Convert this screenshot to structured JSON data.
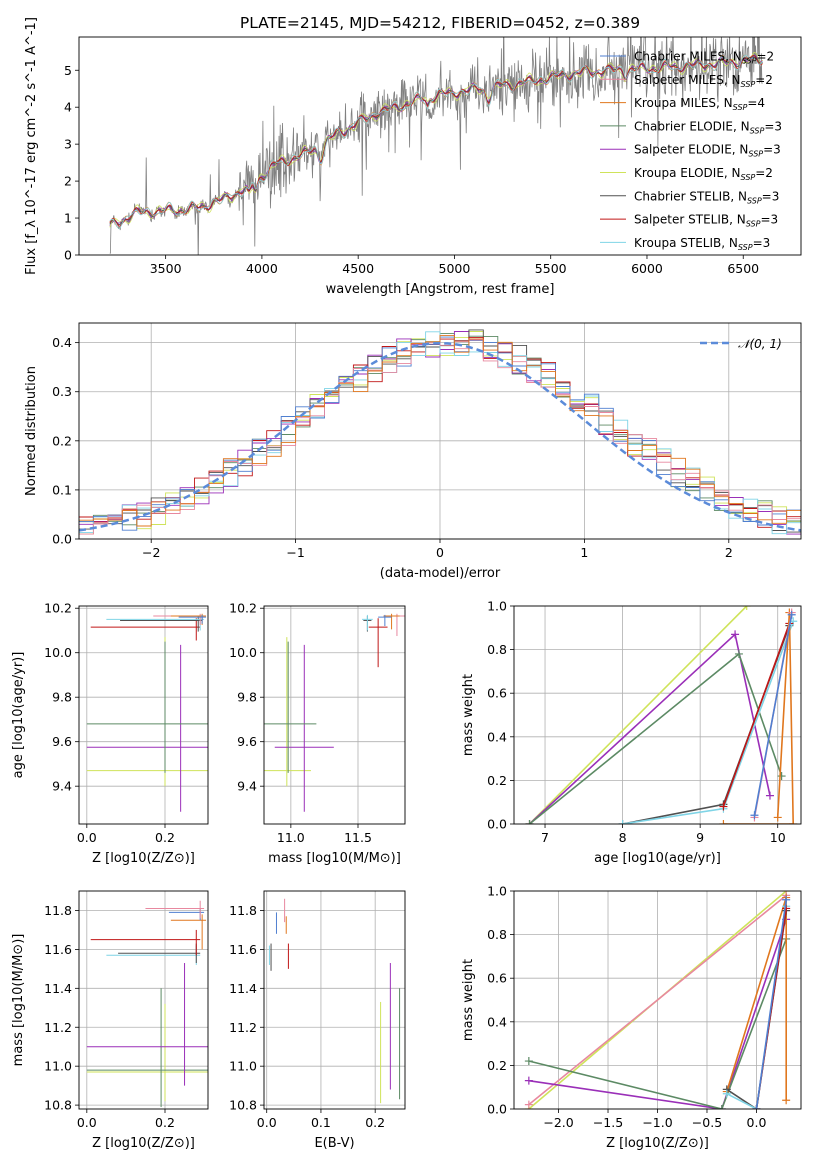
{
  "figure_title": "PLATE=2145, MJD=54212, FIBERID=0452, z=0.389",
  "colors": {
    "chabrier_miles": "#4f7fd0",
    "salpeter_miles": "#e8889f",
    "kroupa_miles": "#e0771e",
    "chabrier_elodie": "#5c8a64",
    "salpeter_elodie": "#9a2fb8",
    "kroupa_elodie": "#cfe35a",
    "chabrier_stelib": "#505050",
    "salpeter_stelib": "#c01616",
    "kroupa_stelib": "#7fd4e6",
    "data": "#808080",
    "normal": "#5b8bd9"
  },
  "chart_data": [
    {
      "id": "spectrum",
      "type": "line",
      "title": "PLATE=2145, MJD=54212, FIBERID=0452, z=0.389",
      "xlabel": "wavelength [Angstrom, rest frame]",
      "ylabel": "Flux [f_λ 10^-17 erg cm^-2 s^-1 A^-1]",
      "xlim": [
        3050,
        6800
      ],
      "ylim": [
        0,
        5.9
      ],
      "xticks": [
        "3500",
        "4000",
        "4500",
        "5000",
        "5500",
        "6000",
        "6500"
      ],
      "yticks": [
        "0",
        "1",
        "2",
        "3",
        "4",
        "5"
      ],
      "grid": false,
      "legend_position": "top-right",
      "legend": [
        {
          "label": "Chabrier MILES, N_SSP=2",
          "key": "chabrier_miles"
        },
        {
          "label": "Salpeter MILES, N_SSP=2",
          "key": "salpeter_miles"
        },
        {
          "label": "Kroupa MILES, N_SSP=4",
          "key": "kroupa_miles"
        },
        {
          "label": "Chabrier ELODIE, N_SSP=3",
          "key": "chabrier_elodie"
        },
        {
          "label": "Salpeter ELODIE, N_SSP=3",
          "key": "salpeter_elodie"
        },
        {
          "label": "Kroupa ELODIE, N_SSP=2",
          "key": "kroupa_elodie"
        },
        {
          "label": "Chabrier STELIB, N_SSP=3",
          "key": "chabrier_stelib"
        },
        {
          "label": "Salpeter STELIB, N_SSP=3",
          "key": "salpeter_stelib"
        },
        {
          "label": "Kroupa STELIB, N_SSP=3",
          "key": "kroupa_stelib"
        }
      ],
      "continuum": [
        [
          3200,
          0.75
        ],
        [
          3350,
          1.15
        ],
        [
          3500,
          1.2
        ],
        [
          3650,
          1.25
        ],
        [
          3800,
          1.5
        ],
        [
          3950,
          1.9
        ],
        [
          4050,
          2.4
        ],
        [
          4250,
          2.8
        ],
        [
          4400,
          3.3
        ],
        [
          4600,
          3.85
        ],
        [
          4850,
          4.25
        ],
        [
          5000,
          4.4
        ],
        [
          5200,
          4.55
        ],
        [
          5400,
          4.7
        ],
        [
          5600,
          4.9
        ],
        [
          5800,
          5.0
        ],
        [
          6000,
          5.05
        ],
        [
          6300,
          5.15
        ],
        [
          6600,
          5.3
        ]
      ]
    },
    {
      "id": "residuals",
      "type": "line",
      "xlabel": "(data-model)/error",
      "ylabel": "Normed distribution",
      "xlim": [
        -2.5,
        2.5
      ],
      "ylim": [
        0,
        0.44
      ],
      "xticks": [
        "−2",
        "−1",
        "0",
        "1",
        "2"
      ],
      "yticks": [
        "0.0",
        "0.1",
        "0.2",
        "0.3",
        "0.4"
      ],
      "grid": true,
      "legend_position": "top-right",
      "legend": [
        {
          "label": "𝒩(0, 1)",
          "key": "normal"
        }
      ],
      "bin_width": 0.1
    },
    {
      "id": "age_vs_Z",
      "type": "scatter",
      "xlabel": "Z [log10(Z/Z⊙)]",
      "ylabel": "age [log10(age/yr)]",
      "xlim": [
        -0.02,
        0.31
      ],
      "ylim": [
        9.23,
        10.21
      ],
      "xticks": [
        "0.0",
        "0.2"
      ],
      "yticks": [
        "9.4",
        "9.6",
        "9.8",
        "10.0",
        "10.2"
      ],
      "grid": true,
      "points": [
        {
          "model": "kroupa_elodie",
          "x": 0.2,
          "xerr": 0.2,
          "y": 9.47,
          "yerr": [
            0.07,
            0.6
          ]
        },
        {
          "model": "salpeter_elodie",
          "x": 0.24,
          "xerr": 0.24,
          "y": 9.575,
          "yerr": [
            0.29,
            0.46
          ]
        },
        {
          "model": "chabrier_elodie",
          "x": 0.2,
          "xerr": 0.2,
          "y": 9.68,
          "yerr": [
            0.22,
            0.37
          ]
        },
        {
          "model": "salpeter_stelib",
          "x": 0.28,
          "xerr": [
            0.27,
            0.01
          ],
          "y": 10.115,
          "yerr": [
            0.06,
            0.04
          ]
        },
        {
          "model": "chabrier_stelib",
          "x": 0.285,
          "xerr": [
            0.2,
            0.01
          ],
          "y": 10.145,
          "yerr": [
            0.05,
            0.02
          ]
        },
        {
          "model": "kroupa_stelib",
          "x": 0.29,
          "xerr": [
            0.24,
            0.01
          ],
          "y": 10.15,
          "yerr": [
            0.05,
            0.02
          ]
        },
        {
          "model": "salpeter_miles",
          "x": 0.29,
          "xerr": [
            0.12,
            0.01
          ],
          "y": 10.165,
          "yerr": [
            0.04,
            0.01
          ]
        },
        {
          "model": "kroupa_miles",
          "x": 0.295,
          "xerr": [
            0.08,
            0.01
          ],
          "y": 10.165,
          "yerr": [
            0.04,
            0.01
          ]
        },
        {
          "model": "chabrier_miles",
          "x": 0.295,
          "xerr": [
            0.06,
            0.01
          ],
          "y": 10.16,
          "yerr": [
            0.03,
            0.01
          ]
        }
      ]
    },
    {
      "id": "age_vs_mass",
      "type": "scatter",
      "xlabel": "mass [log10(M/M⊙)]",
      "ylabel": "",
      "xlim": [
        10.8,
        11.85
      ],
      "ylim": [
        9.23,
        10.21
      ],
      "xticks": [
        "11.0",
        "11.5"
      ],
      "yticks": [
        "9.4",
        "9.6",
        "9.8",
        "10.0",
        "10.2"
      ],
      "grid": true,
      "points": [
        {
          "model": "kroupa_elodie",
          "x": 10.97,
          "xerr": 0.18,
          "y": 9.47,
          "yerr": [
            0.07,
            0.6
          ]
        },
        {
          "model": "salpeter_elodie",
          "x": 11.1,
          "xerr": 0.22,
          "y": 9.575,
          "yerr": [
            0.29,
            0.46
          ]
        },
        {
          "model": "chabrier_elodie",
          "x": 10.98,
          "xerr": 0.21,
          "y": 9.68,
          "yerr": [
            0.22,
            0.37
          ]
        },
        {
          "model": "salpeter_stelib",
          "x": 11.65,
          "xerr": 0.07,
          "y": 10.115,
          "yerr": [
            0.18,
            0.04
          ]
        },
        {
          "model": "chabrier_stelib",
          "x": 11.57,
          "xerr": 0.03,
          "y": 10.145,
          "yerr": [
            0.05,
            0.02
          ]
        },
        {
          "model": "kroupa_stelib",
          "x": 11.57,
          "xerr": 0.04,
          "y": 10.15,
          "yerr": [
            0.05,
            0.02
          ]
        },
        {
          "model": "salpeter_miles",
          "x": 11.79,
          "xerr": 0.06,
          "y": 10.165,
          "yerr": [
            0.09,
            0.01
          ]
        },
        {
          "model": "kroupa_miles",
          "x": 11.75,
          "xerr": 0.06,
          "y": 10.165,
          "yerr": [
            0.06,
            0.01
          ]
        },
        {
          "model": "chabrier_miles",
          "x": 11.7,
          "xerr": 0.05,
          "y": 10.16,
          "yerr": [
            0.04,
            0.01
          ]
        }
      ]
    },
    {
      "id": "weight_vs_age",
      "type": "line",
      "xlabel": "age [log10(age/yr)]",
      "ylabel": "mass weight",
      "xlim": [
        6.6,
        10.3
      ],
      "ylim": [
        0,
        1.0
      ],
      "xticks": [
        "7",
        "8",
        "9",
        "10"
      ],
      "yticks": [
        "0.0",
        "0.2",
        "0.4",
        "0.6",
        "0.8",
        "1.0"
      ],
      "grid": true,
      "series": [
        {
          "model": "kroupa_elodie",
          "x": [
            6.8,
            9.6
          ],
          "y": [
            0.0,
            1.0
          ]
        },
        {
          "model": "salpeter_elodie",
          "x": [
            6.8,
            9.45,
            9.9
          ],
          "y": [
            0.0,
            0.87,
            0.13
          ]
        },
        {
          "model": "chabrier_elodie",
          "x": [
            6.8,
            9.5,
            10.05
          ],
          "y": [
            0.0,
            0.78,
            0.22
          ]
        },
        {
          "model": "chabrier_stelib",
          "x": [
            8.0,
            9.3,
            10.15
          ],
          "y": [
            0.0,
            0.09,
            0.91
          ]
        },
        {
          "model": "kroupa_stelib",
          "x": [
            8.0,
            9.3,
            10.2
          ],
          "y": [
            0.0,
            0.07,
            0.93
          ]
        },
        {
          "model": "salpeter_stelib",
          "x": [
            9.3,
            10.15
          ],
          "y": [
            0.08,
            0.92
          ]
        },
        {
          "model": "kroupa_miles",
          "x": [
            10.0,
            10.15,
            10.2,
            9.3
          ],
          "y": [
            0.03,
            0.97,
            0.0,
            0.0
          ]
        },
        {
          "model": "salpeter_miles",
          "x": [
            9.7,
            10.18
          ],
          "y": [
            0.03,
            0.97
          ]
        },
        {
          "model": "chabrier_miles",
          "x": [
            9.7,
            10.18
          ],
          "y": [
            0.04,
            0.96
          ]
        }
      ]
    },
    {
      "id": "mass_vs_Z",
      "type": "scatter",
      "xlabel": "Z [log10(Z/Z⊙)]",
      "ylabel": "mass [log10(M/M⊙)]",
      "xlim": [
        -0.02,
        0.31
      ],
      "ylim": [
        10.78,
        11.9
      ],
      "xticks": [
        "0.0",
        "0.2"
      ],
      "yticks": [
        "10.8",
        "11.0",
        "11.2",
        "11.4",
        "11.6",
        "11.8"
      ],
      "grid": true,
      "points": [
        {
          "model": "kroupa_elodie",
          "x": 0.2,
          "xerr": 0.2,
          "y": 10.97,
          "yerr": [
            0.15,
            0.35
          ]
        },
        {
          "model": "chabrier_elodie",
          "x": 0.19,
          "xerr": 0.19,
          "y": 10.98,
          "yerr": [
            0.19,
            0.42
          ]
        },
        {
          "model": "salpeter_elodie",
          "x": 0.25,
          "xerr": 0.25,
          "y": 11.1,
          "yerr": [
            0.2,
            0.43
          ]
        },
        {
          "model": "kroupa_stelib",
          "x": 0.28,
          "xerr": [
            0.23,
            0.01
          ],
          "y": 11.57,
          "yerr": [
            0.05,
            0.05
          ]
        },
        {
          "model": "chabrier_stelib",
          "x": 0.28,
          "xerr": [
            0.2,
            0.01
          ],
          "y": 11.58,
          "yerr": [
            0.05,
            0.05
          ]
        },
        {
          "model": "salpeter_stelib",
          "x": 0.28,
          "xerr": [
            0.27,
            0.01
          ],
          "y": 11.65,
          "yerr": [
            0.08,
            0.05
          ]
        },
        {
          "model": "kroupa_miles",
          "x": 0.295,
          "xerr": [
            0.08,
            0.01
          ],
          "y": 11.75,
          "yerr": [
            0.15,
            0.03
          ]
        },
        {
          "model": "chabrier_miles",
          "x": 0.29,
          "xerr": [
            0.08,
            0.01
          ],
          "y": 11.79,
          "yerr": [
            0.04,
            0.02
          ]
        },
        {
          "model": "salpeter_miles",
          "x": 0.29,
          "xerr": [
            0.14,
            0.01
          ],
          "y": 11.81,
          "yerr": [
            0.05,
            0.04
          ]
        }
      ]
    },
    {
      "id": "mass_vs_ebv",
      "type": "scatter",
      "xlabel": "E(B-V)",
      "ylabel": "",
      "xlim": [
        -0.005,
        0.255
      ],
      "ylim": [
        10.78,
        11.9
      ],
      "xticks": [
        "0.0",
        "0.1",
        "0.2"
      ],
      "yticks": [
        "10.8",
        "11.0",
        "11.2",
        "11.4",
        "11.6",
        "11.8"
      ],
      "grid": true,
      "points": [
        {
          "model": "kroupa_stelib",
          "x": 0.005,
          "y": 11.57,
          "yerr": [
            0.05,
            0.05
          ]
        },
        {
          "model": "chabrier_stelib",
          "x": 0.008,
          "y": 11.55,
          "yerr": [
            0.06,
            0.08
          ]
        },
        {
          "model": "chabrier_miles",
          "x": 0.018,
          "y": 11.72,
          "yerr": [
            0.04,
            0.07
          ]
        },
        {
          "model": "salpeter_miles",
          "x": 0.033,
          "y": 11.79,
          "yerr": [
            0.05,
            0.07
          ]
        },
        {
          "model": "kroupa_miles",
          "x": 0.036,
          "y": 11.72,
          "yerr": [
            0.04,
            0.05
          ]
        },
        {
          "model": "salpeter_stelib",
          "x": 0.04,
          "y": 11.55,
          "yerr": [
            0.05,
            0.08
          ]
        },
        {
          "model": "kroupa_elodie",
          "x": 0.21,
          "y": 11.06,
          "yerr": [
            0.25,
            0.27
          ]
        },
        {
          "model": "salpeter_elodie",
          "x": 0.228,
          "y": 11.2,
          "yerr": [
            0.32,
            0.33
          ]
        },
        {
          "model": "chabrier_elodie",
          "x": 0.245,
          "y": 11.1,
          "yerr": [
            0.27,
            0.3
          ]
        }
      ]
    },
    {
      "id": "weight_vs_Z",
      "type": "line",
      "xlabel": "Z [log10(Z/Z⊙)]",
      "ylabel": "mass weight",
      "xlim": [
        -2.45,
        0.45
      ],
      "ylim": [
        0,
        1.0
      ],
      "xticks": [
        "−2.0",
        "−1.5",
        "−1.0",
        "−0.5",
        "0.0"
      ],
      "yticks": [
        "0.0",
        "0.2",
        "0.4",
        "0.6",
        "0.8",
        "1.0"
      ],
      "grid": true,
      "series": [
        {
          "model": "kroupa_elodie",
          "x": [
            -2.3,
            0.3
          ],
          "y": [
            0.0,
            1.0
          ]
        },
        {
          "model": "salpeter_miles",
          "x": [
            -2.3,
            0.3
          ],
          "y": [
            0.02,
            0.98
          ]
        },
        {
          "model": "salpeter_elodie",
          "x": [
            -2.3,
            -0.35,
            0.3
          ],
          "y": [
            0.13,
            0.0,
            0.87
          ]
        },
        {
          "model": "chabrier_elodie",
          "x": [
            -2.3,
            -0.35,
            0.3
          ],
          "y": [
            0.22,
            0.0,
            0.78
          ]
        },
        {
          "model": "kroupa_miles",
          "x": [
            -0.3,
            0.3,
            0.3
          ],
          "y": [
            0.08,
            0.97,
            0.04
          ]
        },
        {
          "model": "chabrier_stelib",
          "x": [
            -0.3,
            0.0,
            0.3
          ],
          "y": [
            0.09,
            0.0,
            0.91
          ]
        },
        {
          "model": "kroupa_stelib",
          "x": [
            -0.3,
            0.0,
            0.3
          ],
          "y": [
            0.07,
            0.0,
            0.93
          ]
        },
        {
          "model": "salpeter_stelib",
          "x": [
            0.0,
            0.3
          ],
          "y": [
            0.0,
            0.92
          ]
        },
        {
          "model": "chabrier_miles",
          "x": [
            0.0,
            0.3
          ],
          "y": [
            0.0,
            0.96
          ]
        }
      ]
    }
  ]
}
